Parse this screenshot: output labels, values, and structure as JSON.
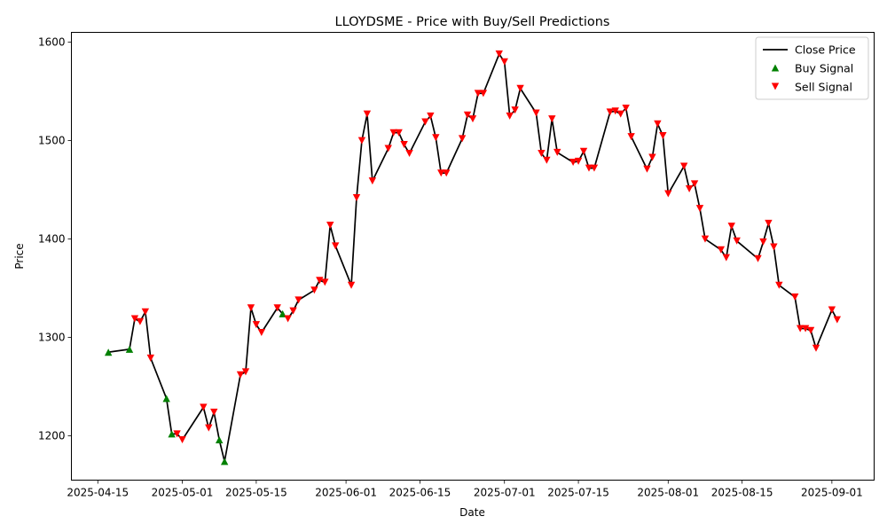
{
  "chart_data": {
    "type": "line",
    "title": "LLOYDSME - Price with Buy/Sell Predictions",
    "xlabel": "Date",
    "ylabel": "Price",
    "xlim": [
      "2025-04-10",
      "2025-09-09"
    ],
    "ylim": [
      1155,
      1610
    ],
    "x_ticks": [
      "2025-04-15",
      "2025-05-01",
      "2025-05-15",
      "2025-06-01",
      "2025-06-15",
      "2025-07-01",
      "2025-07-15",
      "2025-08-01",
      "2025-08-15",
      "2025-09-01"
    ],
    "y_ticks": [
      1200,
      1300,
      1400,
      1500,
      1600
    ],
    "grid": false,
    "legend": {
      "placement": "top-right",
      "entries": [
        "Close Price",
        "Buy Signal",
        "Sell Signal"
      ]
    },
    "colors": {
      "line": "#000000",
      "buy": "#008000",
      "sell": "#ff0000"
    },
    "series": [
      {
        "name": "Close Price",
        "points": [
          [
            "2025-04-17",
            1285
          ],
          [
            "2025-04-21",
            1288
          ],
          [
            "2025-04-22",
            1319
          ],
          [
            "2025-04-23",
            1316
          ],
          [
            "2025-04-24",
            1326
          ],
          [
            "2025-04-25",
            1279
          ],
          [
            "2025-04-28",
            1238
          ],
          [
            "2025-04-29",
            1202
          ],
          [
            "2025-04-30",
            1202
          ],
          [
            "2025-05-01",
            1196
          ],
          [
            "2025-05-05",
            1229
          ],
          [
            "2025-05-06",
            1208
          ],
          [
            "2025-05-07",
            1224
          ],
          [
            "2025-05-08",
            1196
          ],
          [
            "2025-05-09",
            1174
          ],
          [
            "2025-05-12",
            1262
          ],
          [
            "2025-05-13",
            1265
          ],
          [
            "2025-05-14",
            1330
          ],
          [
            "2025-05-15",
            1313
          ],
          [
            "2025-05-16",
            1305
          ],
          [
            "2025-05-19",
            1330
          ],
          [
            "2025-05-20",
            1324
          ],
          [
            "2025-05-21",
            1319
          ],
          [
            "2025-05-22",
            1327
          ],
          [
            "2025-05-23",
            1338
          ],
          [
            "2025-05-26",
            1348
          ],
          [
            "2025-05-27",
            1358
          ],
          [
            "2025-05-28",
            1356
          ],
          [
            "2025-05-29",
            1414
          ],
          [
            "2025-05-30",
            1393
          ],
          [
            "2025-06-02",
            1353
          ],
          [
            "2025-06-03",
            1442
          ],
          [
            "2025-06-04",
            1500
          ],
          [
            "2025-06-05",
            1527
          ],
          [
            "2025-06-06",
            1459
          ],
          [
            "2025-06-09",
            1492
          ],
          [
            "2025-06-10",
            1508
          ],
          [
            "2025-06-11",
            1508
          ],
          [
            "2025-06-12",
            1496
          ],
          [
            "2025-06-13",
            1487
          ],
          [
            "2025-06-16",
            1519
          ],
          [
            "2025-06-17",
            1525
          ],
          [
            "2025-06-18",
            1503
          ],
          [
            "2025-06-19",
            1467
          ],
          [
            "2025-06-20",
            1467
          ],
          [
            "2025-06-23",
            1502
          ],
          [
            "2025-06-24",
            1526
          ],
          [
            "2025-06-25",
            1522
          ],
          [
            "2025-06-26",
            1548
          ],
          [
            "2025-06-27",
            1548
          ],
          [
            "2025-06-30",
            1588
          ],
          [
            "2025-07-01",
            1580
          ],
          [
            "2025-07-02",
            1525
          ],
          [
            "2025-07-03",
            1531
          ],
          [
            "2025-07-04",
            1553
          ],
          [
            "2025-07-07",
            1528
          ],
          [
            "2025-07-08",
            1487
          ],
          [
            "2025-07-09",
            1480
          ],
          [
            "2025-07-10",
            1522
          ],
          [
            "2025-07-11",
            1488
          ],
          [
            "2025-07-14",
            1478
          ],
          [
            "2025-07-15",
            1479
          ],
          [
            "2025-07-16",
            1489
          ],
          [
            "2025-07-17",
            1472
          ],
          [
            "2025-07-18",
            1472
          ],
          [
            "2025-07-21",
            1529
          ],
          [
            "2025-07-22",
            1530
          ],
          [
            "2025-07-23",
            1527
          ],
          [
            "2025-07-24",
            1533
          ],
          [
            "2025-07-25",
            1504
          ],
          [
            "2025-07-28",
            1471
          ],
          [
            "2025-07-29",
            1483
          ],
          [
            "2025-07-30",
            1517
          ],
          [
            "2025-07-31",
            1505
          ],
          [
            "2025-08-01",
            1446
          ],
          [
            "2025-08-04",
            1474
          ],
          [
            "2025-08-05",
            1451
          ],
          [
            "2025-08-06",
            1456
          ],
          [
            "2025-08-07",
            1431
          ],
          [
            "2025-08-08",
            1400
          ],
          [
            "2025-08-11",
            1389
          ],
          [
            "2025-08-12",
            1381
          ],
          [
            "2025-08-13",
            1413
          ],
          [
            "2025-08-14",
            1398
          ],
          [
            "2025-08-18",
            1380
          ],
          [
            "2025-08-19",
            1397
          ],
          [
            "2025-08-20",
            1416
          ],
          [
            "2025-08-21",
            1392
          ],
          [
            "2025-08-22",
            1353
          ],
          [
            "2025-08-25",
            1341
          ],
          [
            "2025-08-26",
            1309
          ],
          [
            "2025-08-27",
            1309
          ],
          [
            "2025-08-28",
            1307
          ],
          [
            "2025-08-29",
            1289
          ],
          [
            "2025-09-01",
            1328
          ],
          [
            "2025-09-02",
            1318
          ]
        ]
      },
      {
        "name": "Buy Signal",
        "points": [
          [
            "2025-04-17",
            1285
          ],
          [
            "2025-04-21",
            1288
          ],
          [
            "2025-04-28",
            1238
          ],
          [
            "2025-04-29",
            1202
          ],
          [
            "2025-05-08",
            1196
          ],
          [
            "2025-05-09",
            1174
          ],
          [
            "2025-05-20",
            1324
          ]
        ]
      },
      {
        "name": "Sell Signal",
        "points": [
          [
            "2025-04-22",
            1319
          ],
          [
            "2025-04-23",
            1316
          ],
          [
            "2025-04-24",
            1326
          ],
          [
            "2025-04-25",
            1279
          ],
          [
            "2025-04-30",
            1202
          ],
          [
            "2025-05-01",
            1196
          ],
          [
            "2025-05-05",
            1229
          ],
          [
            "2025-05-06",
            1208
          ],
          [
            "2025-05-07",
            1224
          ],
          [
            "2025-05-12",
            1262
          ],
          [
            "2025-05-13",
            1265
          ],
          [
            "2025-05-14",
            1330
          ],
          [
            "2025-05-15",
            1313
          ],
          [
            "2025-05-16",
            1305
          ],
          [
            "2025-05-19",
            1330
          ],
          [
            "2025-05-21",
            1319
          ],
          [
            "2025-05-22",
            1327
          ],
          [
            "2025-05-23",
            1338
          ],
          [
            "2025-05-26",
            1348
          ],
          [
            "2025-05-27",
            1358
          ],
          [
            "2025-05-28",
            1356
          ],
          [
            "2025-05-29",
            1414
          ],
          [
            "2025-05-30",
            1393
          ],
          [
            "2025-06-02",
            1353
          ],
          [
            "2025-06-03",
            1442
          ],
          [
            "2025-06-04",
            1500
          ],
          [
            "2025-06-05",
            1527
          ],
          [
            "2025-06-06",
            1459
          ],
          [
            "2025-06-09",
            1492
          ],
          [
            "2025-06-10",
            1508
          ],
          [
            "2025-06-11",
            1508
          ],
          [
            "2025-06-12",
            1496
          ],
          [
            "2025-06-13",
            1487
          ],
          [
            "2025-06-16",
            1519
          ],
          [
            "2025-06-17",
            1525
          ],
          [
            "2025-06-18",
            1503
          ],
          [
            "2025-06-19",
            1467
          ],
          [
            "2025-06-20",
            1467
          ],
          [
            "2025-06-23",
            1502
          ],
          [
            "2025-06-24",
            1526
          ],
          [
            "2025-06-25",
            1522
          ],
          [
            "2025-06-26",
            1548
          ],
          [
            "2025-06-27",
            1548
          ],
          [
            "2025-06-30",
            1588
          ],
          [
            "2025-07-01",
            1580
          ],
          [
            "2025-07-02",
            1525
          ],
          [
            "2025-07-03",
            1531
          ],
          [
            "2025-07-04",
            1553
          ],
          [
            "2025-07-07",
            1528
          ],
          [
            "2025-07-08",
            1487
          ],
          [
            "2025-07-09",
            1480
          ],
          [
            "2025-07-10",
            1522
          ],
          [
            "2025-07-11",
            1488
          ],
          [
            "2025-07-14",
            1478
          ],
          [
            "2025-07-15",
            1479
          ],
          [
            "2025-07-16",
            1489
          ],
          [
            "2025-07-17",
            1472
          ],
          [
            "2025-07-18",
            1472
          ],
          [
            "2025-07-21",
            1529
          ],
          [
            "2025-07-22",
            1530
          ],
          [
            "2025-07-23",
            1527
          ],
          [
            "2025-07-24",
            1533
          ],
          [
            "2025-07-25",
            1504
          ],
          [
            "2025-07-28",
            1471
          ],
          [
            "2025-07-29",
            1483
          ],
          [
            "2025-07-30",
            1517
          ],
          [
            "2025-07-31",
            1505
          ],
          [
            "2025-08-01",
            1446
          ],
          [
            "2025-08-04",
            1474
          ],
          [
            "2025-08-05",
            1451
          ],
          [
            "2025-08-06",
            1456
          ],
          [
            "2025-08-07",
            1431
          ],
          [
            "2025-08-08",
            1400
          ],
          [
            "2025-08-11",
            1389
          ],
          [
            "2025-08-12",
            1381
          ],
          [
            "2025-08-13",
            1413
          ],
          [
            "2025-08-14",
            1398
          ],
          [
            "2025-08-18",
            1380
          ],
          [
            "2025-08-19",
            1397
          ],
          [
            "2025-08-20",
            1416
          ],
          [
            "2025-08-21",
            1392
          ],
          [
            "2025-08-22",
            1353
          ],
          [
            "2025-08-25",
            1341
          ],
          [
            "2025-08-26",
            1309
          ],
          [
            "2025-08-27",
            1309
          ],
          [
            "2025-08-28",
            1307
          ],
          [
            "2025-08-29",
            1289
          ],
          [
            "2025-09-01",
            1328
          ],
          [
            "2025-09-02",
            1318
          ]
        ]
      }
    ]
  }
}
